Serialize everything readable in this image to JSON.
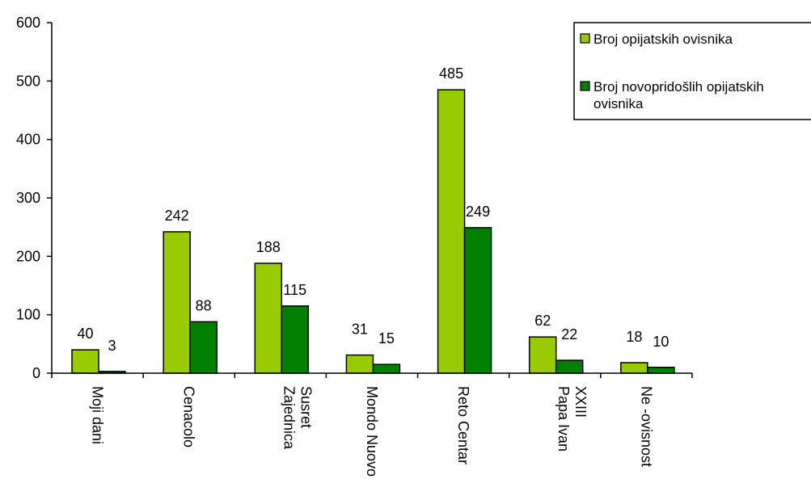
{
  "chart_data": {
    "type": "bar",
    "categories": [
      [
        "Moji dani"
      ],
      [
        "Cenacolo"
      ],
      [
        "Zajednica",
        "Susret"
      ],
      [
        "Mondo Nuovo"
      ],
      [
        "Reto Centar"
      ],
      [
        "Papa Ivan",
        "XXIII"
      ],
      [
        "Ne -ovisnost"
      ]
    ],
    "series": [
      {
        "name": "Broj opijatskih ovisnika",
        "legend_lines": [
          "Broj opijatskih ovisnika"
        ],
        "color": "#99cc00",
        "values": [
          40,
          242,
          188,
          31,
          485,
          62,
          18
        ],
        "labels": [
          "40",
          "242",
          "188",
          "31",
          "485",
          "62",
          "18"
        ]
      },
      {
        "name": "Broj novopridošlih opijatskih ovisnika",
        "legend_lines": [
          "Broj novopridošlih opijatskih",
          "ovisnika"
        ],
        "color": "#008000",
        "values": [
          3,
          88,
          115,
          15,
          249,
          22,
          10
        ],
        "labels": [
          "3",
          "88",
          "115",
          "15",
          "249",
          "22",
          "10"
        ]
      }
    ],
    "ylim": [
      0,
      600
    ],
    "yticks": [
      "0",
      "100",
      "200",
      "300",
      "400",
      "500",
      "600"
    ],
    "grid": false,
    "legend_position": "top-right",
    "title": "",
    "xlabel": "",
    "ylabel": ""
  }
}
